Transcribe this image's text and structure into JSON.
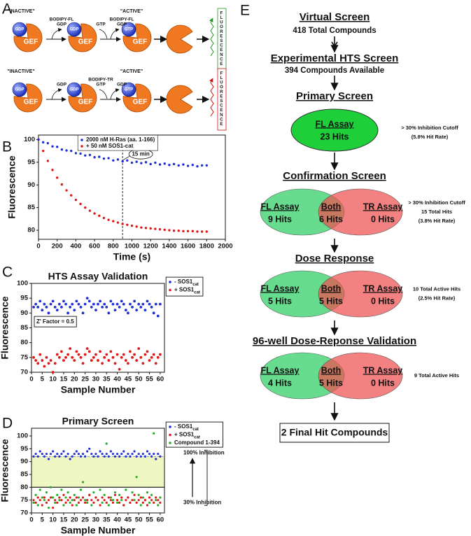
{
  "panel_a": {
    "label": "A",
    "rows": [
      {
        "color": "#1a9a1a",
        "inactive": "\"INACTIVE\"",
        "active": "\"ACTIVE\"",
        "balls": [
          "GDP",
          "GDP",
          "GTP"
        ],
        "gef": "GEF",
        "step1": {
          "lines": [
            "BODIPY-FL",
            "GDP"
          ],
          "color": "#1a9a1a"
        },
        "step2_left": {
          "lines": [
            "GTP"
          ],
          "color": "#111111"
        },
        "step2_right": {
          "lines": [
            "BODIPY-FL",
            "GDP"
          ],
          "color": "#1a9a1a"
        },
        "readout": "FLUORESCENCE"
      },
      {
        "color": "#d01010",
        "inactive": "\"INACTIVE\"",
        "active": "\"ACTIVE\"",
        "balls": [
          "GDP",
          "GDP",
          "GTP"
        ],
        "gef": "GEF",
        "step1": {
          "lines": [
            "GDP"
          ],
          "color": "#111111"
        },
        "step2_left": {
          "lines": [
            "BODIPY-TR",
            "GTP"
          ],
          "color": "#d01010"
        },
        "step2_right": {
          "lines": [
            "GDP"
          ],
          "color": "#111111"
        },
        "readout": "FLUORESCENCE"
      }
    ]
  },
  "chart_data": [
    {
      "type": "scatter",
      "panel": "B",
      "xlabel": "Time (s)",
      "ylabel": "Fluorescence",
      "legend": "upper right",
      "x": [
        0,
        50,
        100,
        150,
        200,
        250,
        300,
        350,
        400,
        450,
        500,
        550,
        600,
        650,
        700,
        750,
        800,
        850,
        900,
        950,
        1000,
        1050,
        1100,
        1150,
        1200,
        1250,
        1300,
        1350,
        1400,
        1450,
        1500,
        1550,
        1600,
        1650,
        1700,
        1750,
        1800
      ],
      "series": [
        {
          "name": "2000 nM H-Ras (aa. 1-166)",
          "color": "#1f2fd6",
          "values": [
            100.0,
            99.4,
            99.2,
            98.5,
            98.4,
            97.8,
            97.6,
            97.5,
            97.0,
            96.9,
            96.5,
            96.6,
            96.1,
            96.2,
            95.8,
            95.9,
            95.4,
            95.6,
            95.2,
            95.4,
            94.9,
            95.1,
            94.8,
            95.0,
            94.6,
            94.9,
            94.5,
            94.7,
            94.4,
            94.6,
            94.3,
            94.5,
            94.2,
            94.4,
            94.1,
            94.3,
            94.3
          ]
        },
        {
          "name": "+ 50 nM SOS1-cat",
          "color": "#e01818",
          "values": [
            100,
            97.5,
            95.3,
            93.3,
            91.6,
            90.1,
            88.8,
            87.7,
            86.7,
            85.8,
            85.0,
            84.3,
            83.7,
            83.2,
            82.7,
            82.3,
            82.0,
            81.7,
            81.4,
            81.2,
            81.0,
            80.8,
            80.6,
            80.5,
            80.4,
            80.3,
            80.2,
            80.1,
            80.0,
            79.9,
            79.9,
            79.8,
            79.8,
            79.8,
            79.7,
            79.7,
            79.7
          ]
        }
      ],
      "annotation": {
        "x": 900,
        "label": "15 min"
      },
      "xlim": [
        0,
        2000
      ],
      "xticks": [
        0,
        200,
        400,
        600,
        800,
        1000,
        1200,
        1400,
        1600,
        1800,
        2000
      ],
      "ylim": [
        78,
        101
      ],
      "yticks": [
        80,
        85,
        90,
        95,
        100
      ]
    },
    {
      "type": "scatter",
      "panel": "C",
      "title": "HTS Assay Validation",
      "xlabel": "Sample Number",
      "ylabel": "Fluorescence",
      "legend": "outside right",
      "x": [
        1,
        2,
        3,
        4,
        5,
        6,
        7,
        8,
        9,
        10,
        11,
        12,
        13,
        14,
        15,
        16,
        17,
        18,
        19,
        20,
        21,
        22,
        23,
        24,
        25,
        26,
        27,
        28,
        29,
        30,
        31,
        32,
        33,
        34,
        35,
        36,
        37,
        38,
        39,
        40,
        41,
        42,
        43,
        44,
        45,
        46,
        47,
        48,
        49,
        50,
        51,
        52,
        53,
        54,
        55,
        56,
        57,
        58,
        59,
        60
      ],
      "series": [
        {
          "name": "- SOS1",
          "name_sub": "cat",
          "color": "#1f2fd6",
          "values": [
            92,
            93,
            92,
            94,
            91,
            93,
            92,
            90,
            93,
            94,
            92,
            91,
            93,
            92,
            94,
            93,
            90,
            92,
            93,
            91,
            94,
            93,
            92,
            90,
            93,
            95,
            94,
            92,
            93,
            91,
            93,
            94,
            92,
            93,
            92,
            90,
            94,
            93,
            91,
            93,
            92,
            94,
            93,
            91,
            90,
            93,
            92,
            94,
            91,
            93,
            92,
            93,
            91,
            94,
            93,
            92,
            90,
            93,
            89,
            93
          ]
        },
        {
          "name": "+ SOS1",
          "name_sub": "cat",
          "color": "#e01818",
          "values": [
            75,
            74,
            73,
            76,
            74,
            72,
            75,
            73,
            74,
            70,
            73,
            76,
            75,
            77,
            74,
            75,
            76,
            78,
            75,
            74,
            77,
            76,
            75,
            73,
            76,
            78,
            77,
            74,
            75,
            76,
            74,
            77,
            73,
            75,
            76,
            74,
            77,
            75,
            73,
            76,
            71,
            75,
            76,
            74,
            73,
            77,
            75,
            76,
            74,
            78,
            75,
            73,
            76,
            77,
            74,
            75,
            76,
            73,
            75,
            76
          ]
        }
      ],
      "annotation": "Z' Factor = 0.5",
      "xlim": [
        0,
        62
      ],
      "xticks": [
        0,
        5,
        10,
        15,
        20,
        25,
        30,
        35,
        40,
        45,
        50,
        55,
        60
      ],
      "ylim": [
        70,
        100
      ],
      "yticks": [
        70,
        75,
        80,
        85,
        90,
        95,
        100
      ]
    },
    {
      "type": "scatter",
      "panel": "D",
      "title": "Primary Screen",
      "xlabel": "Sample Number",
      "ylabel": "Fluorescence",
      "legend": "outside right",
      "x": [
        1,
        2,
        3,
        4,
        5,
        6,
        7,
        8,
        9,
        10,
        11,
        12,
        13,
        14,
        15,
        16,
        17,
        18,
        19,
        20,
        21,
        22,
        23,
        24,
        25,
        26,
        27,
        28,
        29,
        30,
        31,
        32,
        33,
        34,
        35,
        36,
        37,
        38,
        39,
        40,
        41,
        42,
        43,
        44,
        45,
        46,
        47,
        48,
        49,
        50,
        51,
        52,
        53,
        54,
        55,
        56,
        57,
        58,
        59,
        60
      ],
      "series": [
        {
          "name": "- SOS1",
          "name_sub": "cat",
          "color": "#1f2fd6",
          "values": [
            92,
            93,
            92,
            94,
            93,
            92,
            93,
            91,
            93,
            94,
            92,
            93,
            92,
            93,
            94,
            92,
            93,
            91,
            92,
            93,
            94,
            93,
            92,
            93,
            92,
            94,
            95,
            93,
            92,
            93,
            92,
            94,
            93,
            92,
            93,
            92,
            94,
            93,
            92,
            93,
            92,
            93,
            94,
            92,
            93,
            92,
            93,
            94,
            92,
            93,
            92,
            93,
            92,
            94,
            93,
            92,
            93,
            91,
            93,
            92
          ]
        },
        {
          "name": "+ SOS1",
          "name_sub": "cat",
          "color": "#e01818",
          "values": [
            75,
            74,
            76,
            75,
            73,
            76,
            74,
            75,
            76,
            72,
            75,
            74,
            76,
            75,
            77,
            74,
            75,
            76,
            73,
            75,
            76,
            74,
            75,
            76,
            74,
            75,
            77,
            75,
            74,
            76,
            75,
            73,
            76,
            75,
            74,
            76,
            75,
            74,
            77,
            75,
            74,
            76,
            73,
            75,
            76,
            74,
            75,
            77,
            74,
            75,
            76,
            74,
            75,
            73,
            76,
            75,
            74,
            76,
            75,
            74
          ]
        },
        {
          "name": "Compound 1-394",
          "color": "#22b022",
          "values": [
            74,
            77,
            73,
            79,
            76,
            75,
            78,
            72,
            80,
            76,
            74,
            77,
            75,
            79,
            73,
            76,
            78,
            74,
            75,
            77,
            73,
            76,
            79,
            82,
            75,
            74,
            77,
            73,
            78,
            76,
            75,
            79,
            74,
            77,
            97,
            73,
            76,
            75,
            78,
            74,
            77,
            75,
            73,
            79,
            76,
            74,
            78,
            75,
            84,
            77,
            73,
            76,
            75,
            78,
            74,
            77,
            101,
            75,
            73,
            76
          ]
        }
      ],
      "thresholds": [
        {
          "value": 92,
          "label": "100% Inhibition"
        },
        {
          "value": 80,
          "label": "30% Inhibition"
        }
      ],
      "xlim": [
        0,
        62
      ],
      "xticks": [
        0,
        5,
        10,
        15,
        20,
        25,
        30,
        35,
        40,
        45,
        50,
        55,
        60
      ],
      "ylim": [
        70,
        103
      ],
      "yticks": [
        70,
        75,
        80,
        85,
        90,
        95,
        100
      ]
    }
  ],
  "panel_e": {
    "label": "E",
    "virtual": {
      "title": "Virtual Screen",
      "subtitle": "418 Total Compounds"
    },
    "experimental": {
      "title": "Experimental HTS Screen",
      "subtitle": "394 Compounds Available"
    },
    "primary": {
      "title": "Primary Screen",
      "assay": "FL Assay",
      "hits": "23 Hits",
      "notes": [
        "> 30% Inhibition Cutoff",
        "(5.8% Hit Rate)"
      ]
    },
    "stages": [
      {
        "title": "Confirmation Screen",
        "fl": [
          "FL Assay",
          "9 Hits"
        ],
        "both": [
          "Both",
          "6 Hits"
        ],
        "tr": [
          "TR Assay",
          "0 Hits"
        ],
        "notes": [
          "> 30% Inhibition Cutoff",
          "15 Total Hits",
          "(3.8% Hit Rate)"
        ]
      },
      {
        "title": "Dose Response",
        "fl": [
          "FL Assay",
          "5 Hits"
        ],
        "both": [
          "Both",
          "5 Hits"
        ],
        "tr": [
          "TR Assay",
          "0 Hits"
        ],
        "notes": [
          "10 Total Active Hits",
          "(2.5% Hit Rate)"
        ]
      },
      {
        "title": "96-well Dose-Reponse Validation",
        "fl": [
          "FL Assay",
          "4 Hits"
        ],
        "both": [
          "Both",
          "5 Hits"
        ],
        "tr": [
          "TR Assay",
          "0 Hits"
        ],
        "notes": [
          "9 Total Active Hits"
        ]
      }
    ],
    "final": "2 Final Hit Compounds"
  }
}
